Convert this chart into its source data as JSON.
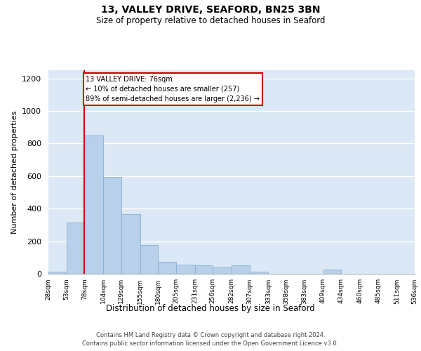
{
  "title1": "13, VALLEY DRIVE, SEAFORD, BN25 3BN",
  "title2": "Size of property relative to detached houses in Seaford",
  "xlabel": "Distribution of detached houses by size in Seaford",
  "ylabel": "Number of detached properties",
  "annotation_line1": "13 VALLEY DRIVE: 76sqm",
  "annotation_line2": "← 10% of detached houses are smaller (257)",
  "annotation_line3": "89% of semi-detached houses are larger (2,236) →",
  "bin_edges": [
    28,
    53,
    78,
    104,
    129,
    155,
    180,
    205,
    231,
    256,
    282,
    307,
    333,
    358,
    383,
    409,
    434,
    460,
    485,
    511,
    536
  ],
  "bar_heights": [
    15,
    315,
    850,
    595,
    365,
    175,
    75,
    55,
    50,
    40,
    50,
    15,
    0,
    0,
    0,
    25,
    0,
    0,
    0,
    0
  ],
  "bar_color": "#b8d0ea",
  "bar_edge_color": "#85afd4",
  "vline_color": "#cc0000",
  "vline_x": 78,
  "annotation_box_edgecolor": "#cc0000",
  "background_color": "#dce8f5",
  "grid_color": "#ffffff",
  "ylim": [
    0,
    1250
  ],
  "yticks": [
    0,
    200,
    400,
    600,
    800,
    1000,
    1200
  ],
  "footer1": "Contains HM Land Registry data © Crown copyright and database right 2024.",
  "footer2": "Contains public sector information licensed under the Open Government Licence v3.0."
}
